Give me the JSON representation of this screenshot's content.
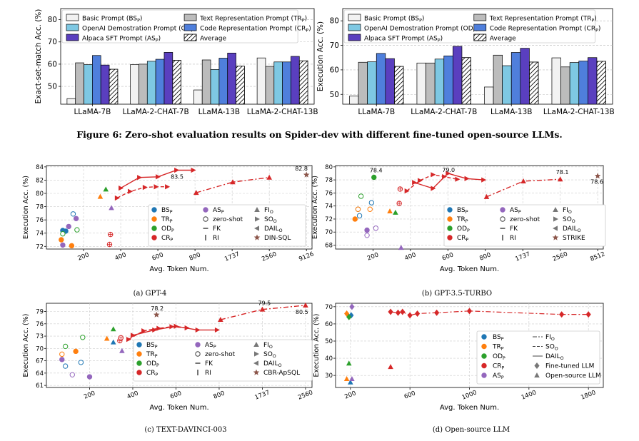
{
  "figure_caption": "Figure 6: Zero-shot evaluation results on Spider-dev with different fine-tuned open-source LLMs.",
  "subcaptions": [
    "(a) GPT-4",
    "(b) GPT-3.5-TURBO",
    "(c) TEXT-DAVINCI-003",
    "(d) Open-source LLM"
  ],
  "bar_legend": [
    "Basic Prompt (BS_P)",
    "Text Representation Prompt (TR_P)",
    "OpenAI Demostration Prompt (OD_P)",
    "Code Representation Prompt (CR_P)",
    "Alpaca SFT Prompt (AS_P)",
    "Average"
  ],
  "colors": {
    "BS": "#f2f2f2",
    "TR": "#bcbcbc",
    "OD": "#7ec8e3",
    "CR": "#4f7fdc",
    "AS": "#5a3fbf",
    "AVG": "#ffffff",
    "red": "#d62728",
    "blue": "#1f77b4",
    "orange": "#ff7f0e",
    "green": "#2ca02c",
    "purple": "#9467bd",
    "brown": "#8c564b"
  },
  "chart_data": [
    {
      "type": "bar",
      "ylabel": "Exact-set-match Acc. (%)",
      "ylim": [
        42,
        85
      ],
      "yticks": [
        50,
        60,
        70,
        80
      ],
      "categories": [
        "LLaMA-7B",
        "LLaMA-2-CHAT-7B",
        "LLaMA-13B",
        "LLaMA-2-CHAT-13B"
      ],
      "series": [
        {
          "name": "BS_P",
          "values": [
            44.5,
            59.8,
            48.4,
            62.8
          ]
        },
        {
          "name": "TR_P",
          "values": [
            60.6,
            60.0,
            61.9,
            59.0
          ]
        },
        {
          "name": "OD_P",
          "values": [
            59.8,
            61.3,
            57.6,
            61.0
          ]
        },
        {
          "name": "CR_P",
          "values": [
            63.9,
            62.2,
            62.7,
            61.0
          ]
        },
        {
          "name": "AS_P",
          "values": [
            59.6,
            65.3,
            65.0,
            63.5
          ]
        },
        {
          "name": "Average",
          "values": [
            57.7,
            61.7,
            59.1,
            61.5
          ]
        }
      ]
    },
    {
      "type": "bar",
      "ylabel": "Execution Acc. (%)",
      "ylim": [
        46,
        85
      ],
      "yticks": [
        50,
        60,
        70,
        80
      ],
      "categories": [
        "LLaMA-7B",
        "LLaMA-2-CHAT-7B",
        "LLaMA-13B",
        "LLaMA-2-CHAT-13B"
      ],
      "series": [
        {
          "name": "BS_P",
          "values": [
            49.3,
            62.8,
            53.0,
            64.9
          ]
        },
        {
          "name": "TR_P",
          "values": [
            63.1,
            62.8,
            66.0,
            61.2
          ]
        },
        {
          "name": "OD_P",
          "values": [
            63.3,
            64.4,
            61.7,
            63.0
          ]
        },
        {
          "name": "CR_P",
          "values": [
            66.7,
            65.7,
            67.1,
            63.6
          ]
        },
        {
          "name": "AS_P",
          "values": [
            64.6,
            69.6,
            68.8,
            65.0
          ]
        },
        {
          "name": "Average",
          "values": [
            61.4,
            65.0,
            63.2,
            63.5
          ]
        }
      ]
    },
    {
      "type": "scatter",
      "xlabel": "Avg. Token Num.",
      "ylabel": "Execution Acc. (%)",
      "ylim": [
        71.6,
        84.2
      ],
      "yticks": [
        72,
        74,
        76,
        78,
        80,
        82,
        84
      ],
      "xticks": [
        "200",
        "400",
        "600",
        "800",
        "1737",
        "2560",
        "9126"
      ],
      "legend": [
        "BS_P",
        "AS_P",
        "FI_O",
        "TR_P",
        "zero-shot",
        "SO_O",
        "OD_P",
        "FK",
        "DAIL_O",
        "CR_P",
        "RI",
        "DIN-SQL"
      ],
      "annotations": [
        "83.5",
        "82.8"
      ],
      "points": [
        {
          "g": "BS",
          "x": 130,
          "y": 74.4
        },
        {
          "g": "BS",
          "x": 165,
          "y": 76.9
        },
        {
          "g": "BS",
          "x": 140,
          "y": 74.3
        },
        {
          "g": "TR",
          "x": 125,
          "y": 73.0
        },
        {
          "g": "TR",
          "x": 160,
          "y": 72.1
        },
        {
          "g": "TR",
          "x": 290,
          "y": 79.5
        },
        {
          "g": "OD",
          "x": 130,
          "y": 73.9
        },
        {
          "g": "OD",
          "x": 178,
          "y": 74.5
        },
        {
          "g": "OD",
          "x": 320,
          "y": 80.6
        },
        {
          "g": "AS",
          "x": 130,
          "y": 72.2
        },
        {
          "g": "AS",
          "x": 150,
          "y": 75.0
        },
        {
          "g": "AS",
          "x": 175,
          "y": 76.2
        },
        {
          "g": "AS",
          "x": 350,
          "y": 77.8
        },
        {
          "g": "CR",
          "x": 340,
          "y": 72.3
        },
        {
          "g": "CR",
          "x": 345,
          "y": 73.8
        }
      ],
      "lines": [
        {
          "style": "solid",
          "points": [
            [
              400,
              80.8
            ],
            [
              500,
              82.4
            ],
            [
              600,
              82.5
            ],
            [
              700,
              83.5
            ],
            [
              790,
              83.5
            ]
          ]
        },
        {
          "style": "dashed",
          "points": [
            [
              380,
              79.3
            ],
            [
              450,
              80.3
            ],
            [
              530,
              80.9
            ],
            [
              590,
              81.0
            ],
            [
              650,
              81.0
            ]
          ]
        },
        {
          "style": "dashdot",
          "points": [
            [
              830,
              80.1
            ],
            [
              1750,
              81.7
            ],
            [
              2560,
              82.4
            ]
          ]
        }
      ],
      "din_sql": {
        "x": 9126,
        "y": 82.8
      }
    },
    {
      "type": "scatter",
      "xlabel": "Avg. Token Num.",
      "ylabel": "Execution Acc. (%)",
      "ylim": [
        67.4,
        80.2
      ],
      "yticks": [
        68,
        70,
        72,
        74,
        76,
        78,
        80
      ],
      "xticks": [
        "200",
        "400",
        "600",
        "800",
        "1737",
        "2560",
        "8512"
      ],
      "legend": [
        "BS_P",
        "AS_P",
        "FI_O",
        "TR_P",
        "zero-shot",
        "SO_O",
        "OD_P",
        "FK",
        "DAIL_O",
        "CR_P",
        "RI",
        "STRIKE"
      ],
      "annotations": [
        "78.4",
        "79.0",
        "78.1",
        "78.6"
      ],
      "points": [
        {
          "g": "BS",
          "x": 155,
          "y": 72.5
        },
        {
          "g": "BS",
          "x": 195,
          "y": 74.5
        },
        {
          "g": "BS",
          "x": 150,
          "y": 73.5
        },
        {
          "g": "TR",
          "x": 140,
          "y": 72.0
        },
        {
          "g": "TR",
          "x": 150,
          "y": 73.5
        },
        {
          "g": "TR",
          "x": 190,
          "y": 73.5
        },
        {
          "g": "TR",
          "x": 290,
          "y": 73.2
        },
        {
          "g": "OD",
          "x": 160,
          "y": 75.5
        },
        {
          "g": "OD",
          "x": 205,
          "y": 78.4
        },
        {
          "g": "OD",
          "x": 320,
          "y": 73.0
        },
        {
          "g": "AS",
          "x": 180,
          "y": 69.5
        },
        {
          "g": "AS",
          "x": 180,
          "y": 70.3
        },
        {
          "g": "AS",
          "x": 215,
          "y": 70.6
        },
        {
          "g": "AS",
          "x": 350,
          "y": 67.6
        },
        {
          "g": "CR",
          "x": 340,
          "y": 74.4
        },
        {
          "g": "CR",
          "x": 345,
          "y": 76.6
        }
      ],
      "lines": [
        {
          "style": "solid",
          "points": [
            [
              420,
              77.6
            ],
            [
              520,
              76.7
            ],
            [
              600,
              79.0
            ],
            [
              700,
              78.2
            ],
            [
              790,
              78.0
            ]
          ]
        },
        {
          "style": "dashed",
          "points": [
            [
              380,
              76.3
            ],
            [
              450,
              77.9
            ],
            [
              520,
              78.8
            ],
            [
              580,
              78.5
            ],
            [
              650,
              78.1
            ]
          ]
        },
        {
          "style": "dashdot",
          "points": [
            [
              830,
              75.4
            ],
            [
              1750,
              77.8
            ],
            [
              2560,
              78.1
            ]
          ]
        }
      ],
      "strike": {
        "x": 8512,
        "y": 78.6
      }
    },
    {
      "type": "scatter",
      "xlabel": "Avg. Token Num.",
      "ylabel": "Execution Acc. (%)",
      "ylim": [
        60.5,
        81.0
      ],
      "yticks": [
        61,
        64,
        67,
        70,
        73,
        76,
        79
      ],
      "xticks": [
        "200",
        "400",
        "600",
        "800",
        "1737",
        "2560"
      ],
      "legend": [
        "BS_P",
        "AS_P",
        "FI_O",
        "TR_P",
        "zero-shot",
        "SO_O",
        "OD_P",
        "FK",
        "DAIL_O",
        "CR_P",
        "RI",
        "CBR-ApSQL"
      ],
      "annotations": [
        "78.2",
        "79.5",
        "80.5"
      ],
      "points": [
        {
          "g": "BS",
          "x": 130,
          "y": 65.7
        },
        {
          "g": "BS",
          "x": 175,
          "y": 66.6
        },
        {
          "g": "BS",
          "x": 310,
          "y": 71.5
        },
        {
          "g": "TR",
          "x": 120,
          "y": 68.6
        },
        {
          "g": "TR",
          "x": 160,
          "y": 69.3
        },
        {
          "g": "TR",
          "x": 280,
          "y": 72.4
        },
        {
          "g": "OD",
          "x": 130,
          "y": 70.5
        },
        {
          "g": "OD",
          "x": 180,
          "y": 72.7
        },
        {
          "g": "OD",
          "x": 310,
          "y": 74.7
        },
        {
          "g": "AS",
          "x": 120,
          "y": 67.3
        },
        {
          "g": "AS",
          "x": 150,
          "y": 63.6
        },
        {
          "g": "AS",
          "x": 200,
          "y": 63.1
        },
        {
          "g": "AS",
          "x": 350,
          "y": 69.4
        },
        {
          "g": "CR",
          "x": 340,
          "y": 71.9
        },
        {
          "g": "CR",
          "x": 345,
          "y": 72.6
        }
      ],
      "lines": [
        {
          "style": "solid",
          "points": [
            [
              400,
              73.2
            ],
            [
              500,
              74.5
            ],
            [
              600,
              75.4
            ],
            [
              700,
              74.5
            ],
            [
              790,
              74.5
            ]
          ]
        },
        {
          "style": "dashed",
          "points": [
            [
              380,
              72.2
            ],
            [
              450,
              74.3
            ],
            [
              520,
              74.9
            ],
            [
              580,
              75.3
            ],
            [
              650,
              75.0
            ]
          ]
        },
        {
          "style": "dashdot",
          "points": [
            [
              830,
              77.0
            ],
            [
              1737,
              79.5
            ],
            [
              2560,
              80.5
            ]
          ]
        }
      ],
      "cbr": {
        "x": 510,
        "y": 78.2
      }
    },
    {
      "type": "scatter",
      "xlabel": "Avg. Token Num.",
      "ylabel": "Execution Acc. (%)",
      "xlim": [
        100,
        1900
      ],
      "ylim": [
        23,
        72
      ],
      "yticks": [
        30,
        40,
        50,
        60,
        70
      ],
      "xticks": [
        200,
        600,
        1000,
        1400,
        1800
      ],
      "legend": [
        "BS_P",
        "FI_O",
        "TR_P",
        "SO_O",
        "OD_P",
        "DAIL_O",
        "CR_P",
        "Fine-tuned LLM",
        "AS_P",
        "Open-source LLM"
      ],
      "finetuned": [
        {
          "g": "TR",
          "x": 175,
          "y": 66.0
        },
        {
          "g": "BS",
          "x": 205,
          "y": 65.0
        },
        {
          "g": "OD",
          "x": 190,
          "y": 64.0
        },
        {
          "g": "AS",
          "x": 210,
          "y": 70.0
        },
        {
          "g": "CR",
          "x": 470,
          "y": 67.0
        },
        {
          "g": "CR",
          "x": 520,
          "y": 66.5
        },
        {
          "g": "CR",
          "x": 550,
          "y": 67.0
        },
        {
          "g": "CR",
          "x": 600,
          "y": 65.0
        },
        {
          "g": "CR",
          "x": 650,
          "y": 66.0
        },
        {
          "g": "CR",
          "x": 780,
          "y": 66.5
        },
        {
          "g": "CR",
          "x": 1000,
          "y": 67.5
        },
        {
          "g": "CR",
          "x": 1620,
          "y": 65.5
        },
        {
          "g": "CR",
          "x": 1800,
          "y": 65.5
        }
      ],
      "opensource": [
        {
          "g": "TR",
          "x": 175,
          "y": 28.0
        },
        {
          "g": "OD",
          "x": 190,
          "y": 37.0
        },
        {
          "g": "BS",
          "x": 200,
          "y": 26.0
        },
        {
          "g": "AS",
          "x": 210,
          "y": 28.0
        },
        {
          "g": "CR",
          "x": 470,
          "y": 35.0
        }
      ]
    }
  ]
}
